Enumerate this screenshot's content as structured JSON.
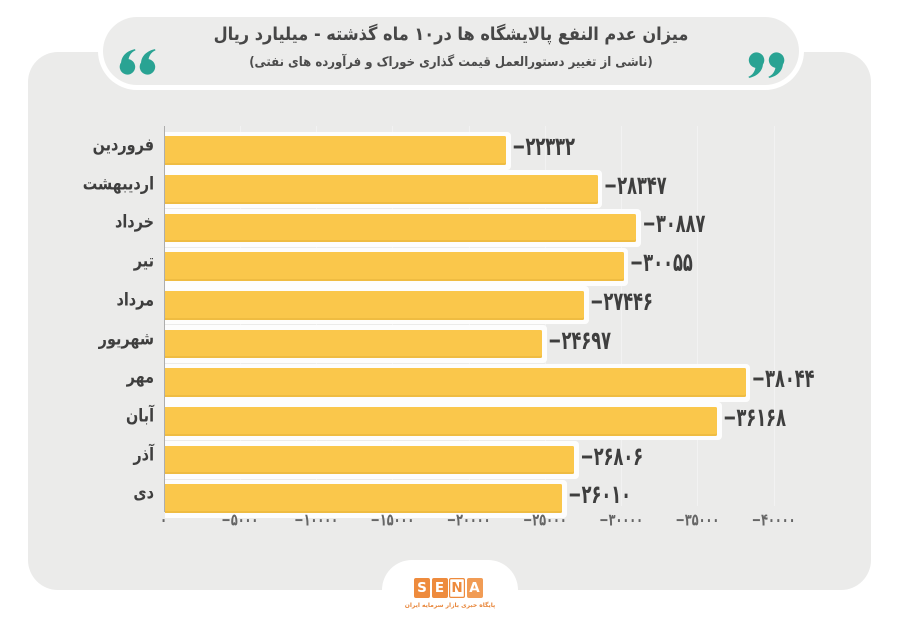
{
  "header": {
    "title": "میزان عدم النفع پالایشگاه ها در۱۰ ماه گذشته - میلیارد ریال",
    "subtitle": "(ناشی از تغییر دستورالعمل قیمت گذاری خوراک و فرآورده های نفتی)"
  },
  "chart_data": {
    "type": "bar",
    "orientation": "horizontal-rtl",
    "title": "میزان عدم النفع پالایشگاه ها در۱۰ ماه گذشته - میلیارد ریال",
    "subtitle": "(ناشی از تغییر دستورالعمل قیمت گذاری خوراک و فرآورده های نفتی)",
    "unit": "میلیارد ریال",
    "categories": [
      "فروردین",
      "اردیبهشت",
      "خرداد",
      "تیر",
      "مرداد",
      "شهریور",
      "مهر",
      "آبان",
      "آذر",
      "دی"
    ],
    "values": [
      -22332,
      -28347,
      -30887,
      -30055,
      -27446,
      -24697,
      -38044,
      -36168,
      -26806,
      -26010
    ],
    "value_labels": [
      "−۲۲۳۳۲",
      "−۲۸۳۴۷",
      "−۳۰۸۸۷",
      "−۳۰۰۵۵",
      "−۲۷۴۴۶",
      "−۲۴۶۹۷",
      "−۳۸۰۴۴",
      "−۳۶۱۶۸",
      "−۲۶۸۰۶",
      "−۲۶۰۱۰"
    ],
    "x_ticks": [
      0,
      -5000,
      -10000,
      -15000,
      -20000,
      -25000,
      -30000,
      -35000,
      -40000
    ],
    "x_tick_labels": [
      "۰",
      "−۵۰۰۰",
      "−۱۰۰۰۰",
      "−۱۵۰۰۰",
      "−۲۰۰۰۰",
      "−۲۵۰۰۰",
      "−۳۰۰۰۰",
      "−۳۵۰۰۰",
      "−۴۰۰۰۰"
    ],
    "xlim": [
      0,
      -40000
    ],
    "grid": true,
    "legend": false,
    "bar_color": "#fac74b"
  },
  "colors": {
    "card_bg": "#ececeb",
    "accent_teal": "#29a393",
    "bar_yellow": "#fac74b",
    "text_dark": "#454545",
    "logo_orange": "#ee8b3d"
  },
  "footer": {
    "logo_letters": [
      "S",
      "E",
      "N",
      "A"
    ],
    "logo_tagline": "پایگاه خبری بازار سرمایه ایران"
  }
}
